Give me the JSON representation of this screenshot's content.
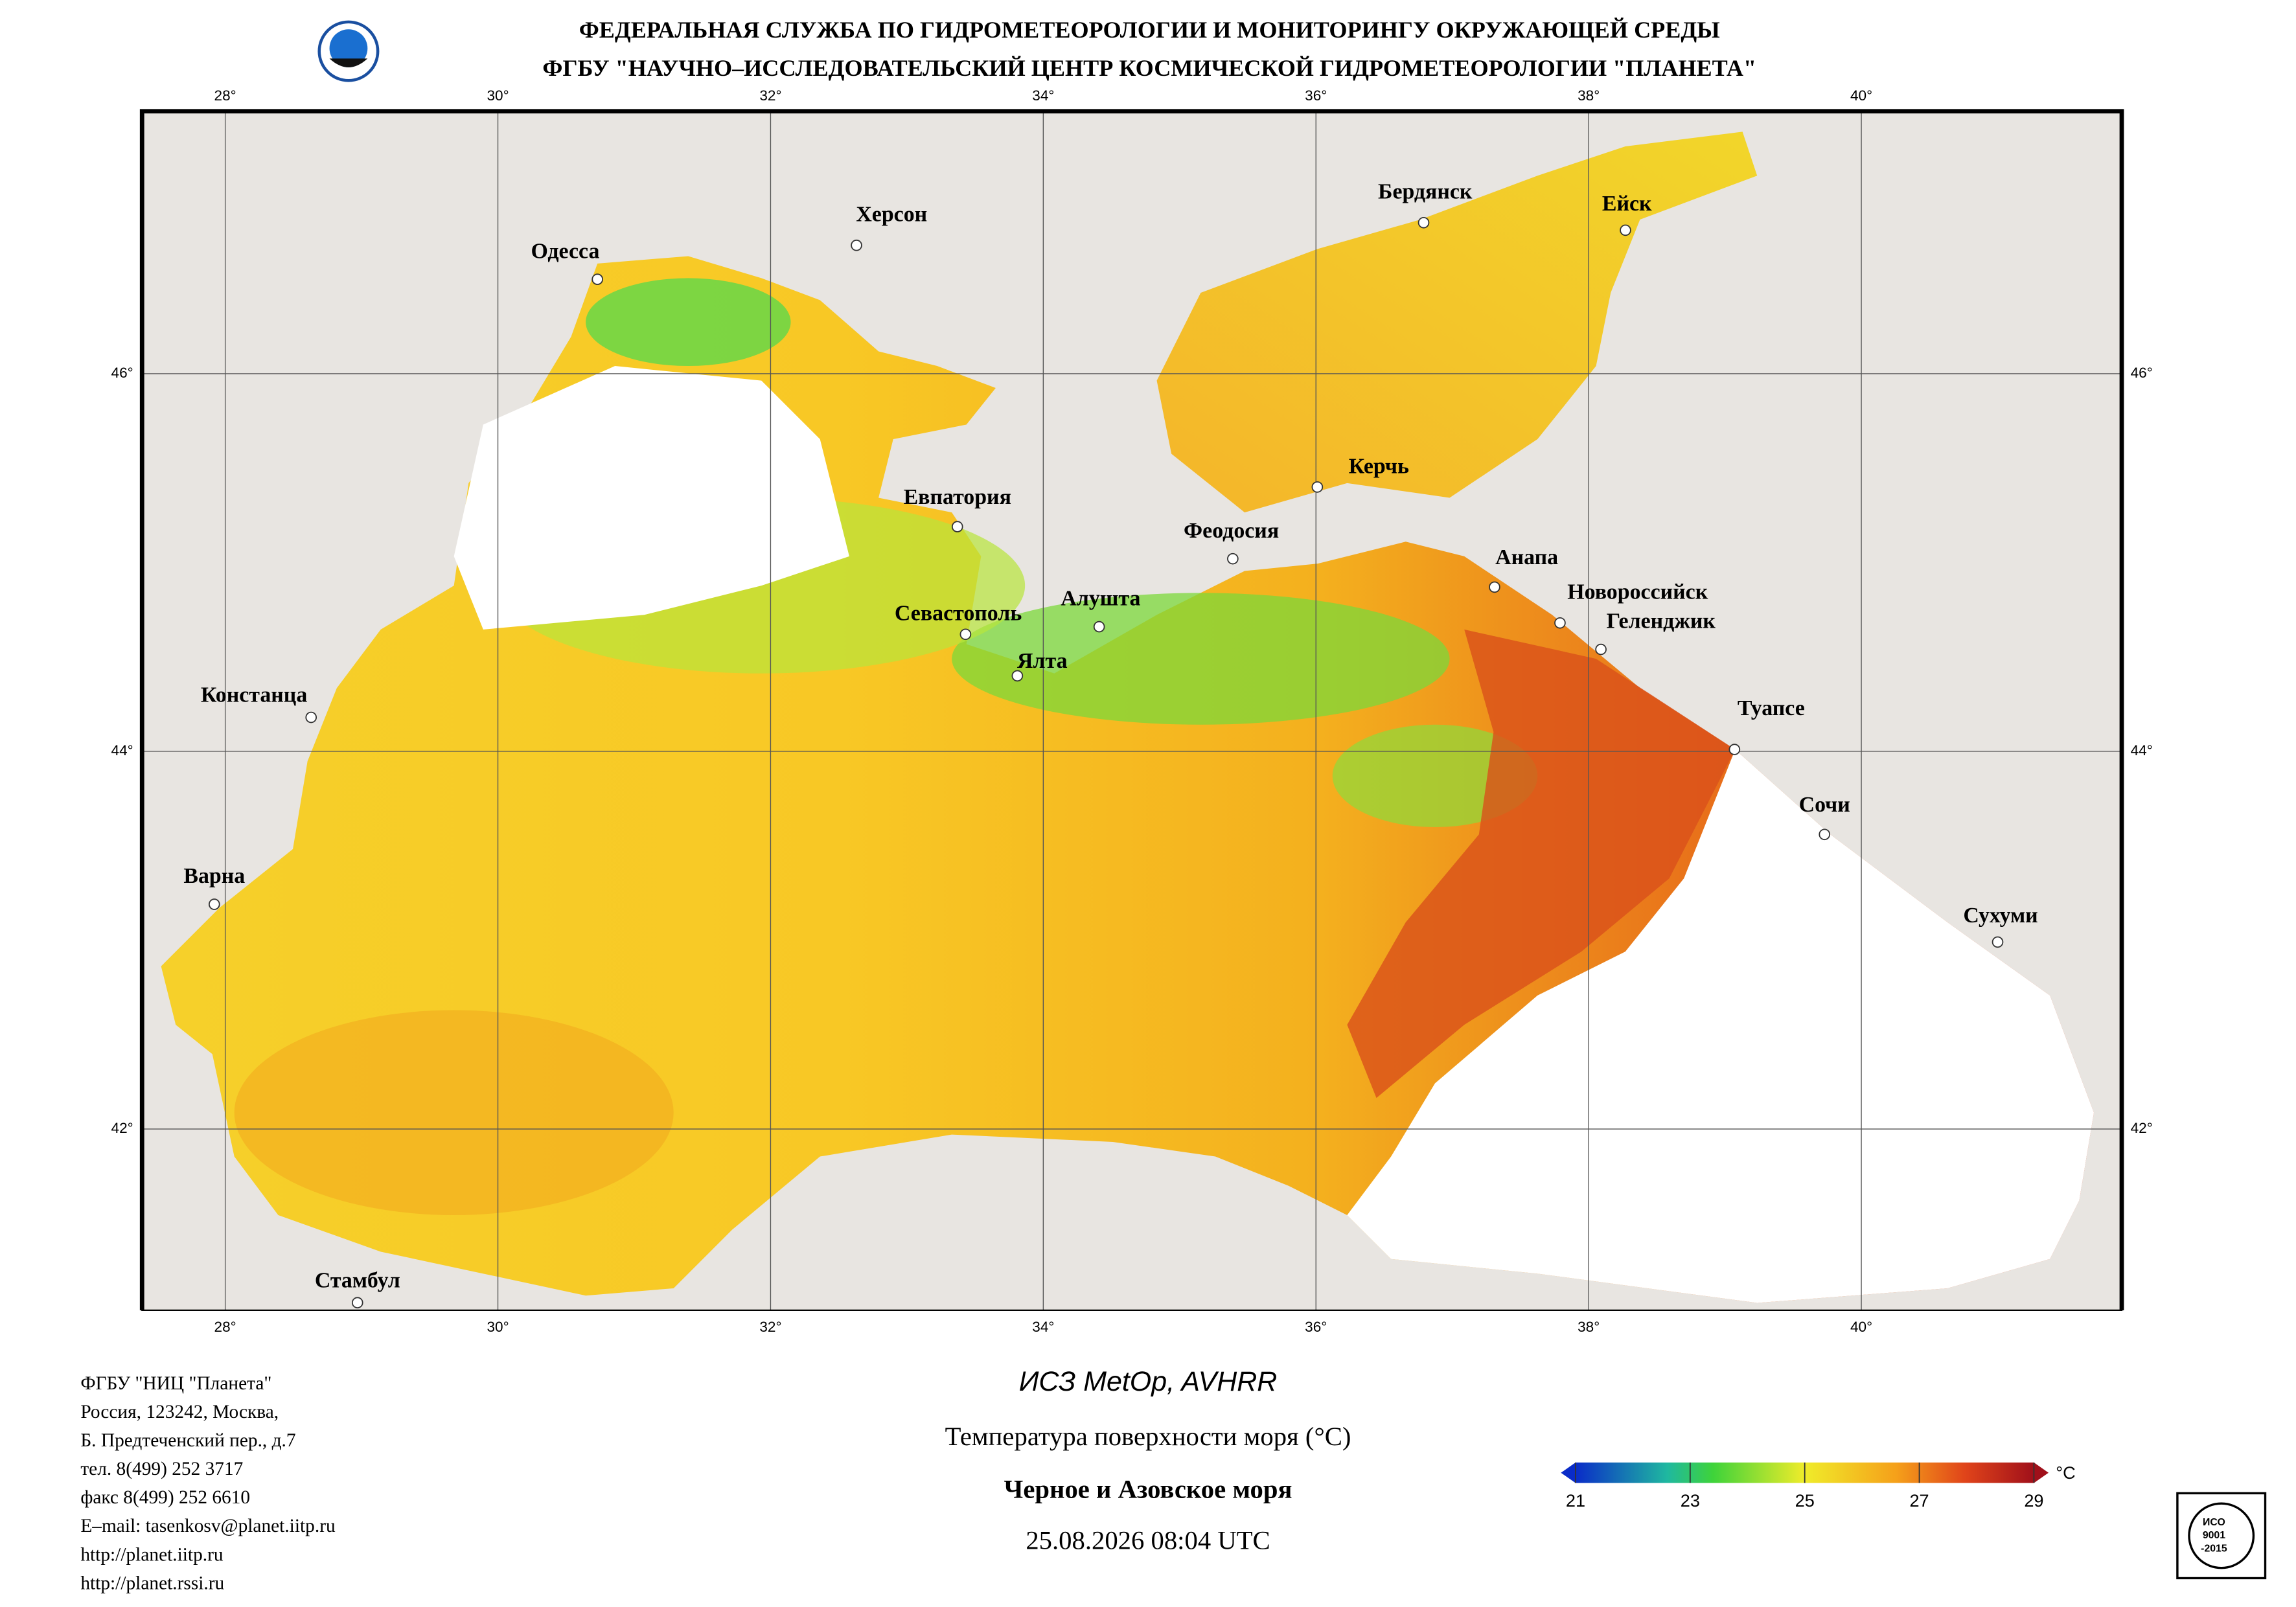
{
  "header": {
    "line1": "ФЕДЕРАЛЬНАЯ СЛУЖБА ПО ГИДРОМЕТЕОРОЛОГИИ И МОНИТОРИНГУ ОКРУЖАЮЩЕЙ СРЕДЫ",
    "line2": "ФГБУ \"НАУЧНО–ИССЛЕДОВАТЕЛЬСКИЙ ЦЕНТР КОСМИЧЕСКОЙ ГИДРОМЕТЕОРОЛОГИИ \"ПЛАНЕТА\""
  },
  "map": {
    "lon_range": [
      27.39,
      41.91
    ],
    "lat_range": [
      41.04,
      47.39
    ],
    "lon_ticks": [
      {
        "value": 28,
        "label": "28°"
      },
      {
        "value": 30,
        "label": "30°"
      },
      {
        "value": 32,
        "label": "32°"
      },
      {
        "value": 34,
        "label": "34°"
      },
      {
        "value": 36,
        "label": "36°"
      },
      {
        "value": 38,
        "label": "38°"
      },
      {
        "value": 40,
        "label": "40°"
      }
    ],
    "lat_ticks": [
      {
        "value": 46,
        "label": "46°"
      },
      {
        "value": 44,
        "label": "44°"
      },
      {
        "value": 42,
        "label": "42°"
      }
    ],
    "cities": [
      {
        "name": "Одесса",
        "lon": 30.73,
        "lat": 46.5
      },
      {
        "name": "Херсон",
        "lon": 32.63,
        "lat": 46.68
      },
      {
        "name": "Бердянск",
        "lon": 36.79,
        "lat": 46.8
      },
      {
        "name": "Ейск",
        "lon": 38.27,
        "lat": 46.76
      },
      {
        "name": "Евпатория",
        "lon": 33.37,
        "lat": 45.19
      },
      {
        "name": "Керчь",
        "lon": 36.01,
        "lat": 45.4
      },
      {
        "name": "Феодосия",
        "lon": 35.39,
        "lat": 45.02
      },
      {
        "name": "Анапа",
        "lon": 37.31,
        "lat": 44.87
      },
      {
        "name": "Новороссийск",
        "lon": 37.79,
        "lat": 44.68
      },
      {
        "name": "Геленджик",
        "lon": 38.09,
        "lat": 44.54
      },
      {
        "name": "Севастополь",
        "lon": 33.43,
        "lat": 44.62
      },
      {
        "name": "Алушта",
        "lon": 34.41,
        "lat": 44.66
      },
      {
        "name": "Ялта",
        "lon": 33.81,
        "lat": 44.4
      },
      {
        "name": "Туапсе",
        "lon": 39.07,
        "lat": 44.01
      },
      {
        "name": "Констанца",
        "lon": 28.63,
        "lat": 44.18
      },
      {
        "name": "Сочи",
        "lon": 39.73,
        "lat": 43.56
      },
      {
        "name": "Варна",
        "lon": 27.92,
        "lat": 43.19
      },
      {
        "name": "Сухуми",
        "lon": 41.0,
        "lat": 42.99
      },
      {
        "name": "Стамбул",
        "lon": 28.97,
        "lat": 41.08
      }
    ]
  },
  "address": [
    "ФГБУ \"НИЦ \"Планета\"",
    "Россия, 123242, Москва,",
    "Б. Предтеченский пер., д.7",
    "тел. 8(499) 252 3717",
    "факс 8(499) 252 6610",
    "E–mail: tasenkosv@planet.iitp.ru",
    "http://planet.iitp.ru",
    "http://planet.rssi.ru"
  ],
  "product": {
    "satellite": "ИСЗ MetOp, AVHRR",
    "parameter": "Температура поверхности моря (°C)",
    "region": "Черное и Азовское моря",
    "datetime": "25.08.2026 08:04 UTC"
  },
  "colorbar": {
    "range": [
      21,
      29
    ],
    "ticks": [
      21,
      23,
      25,
      27,
      29
    ],
    "unit": "°C"
  },
  "cert": {
    "line1": "ИСО",
    "line2": "9001",
    "line3": "-2015"
  }
}
